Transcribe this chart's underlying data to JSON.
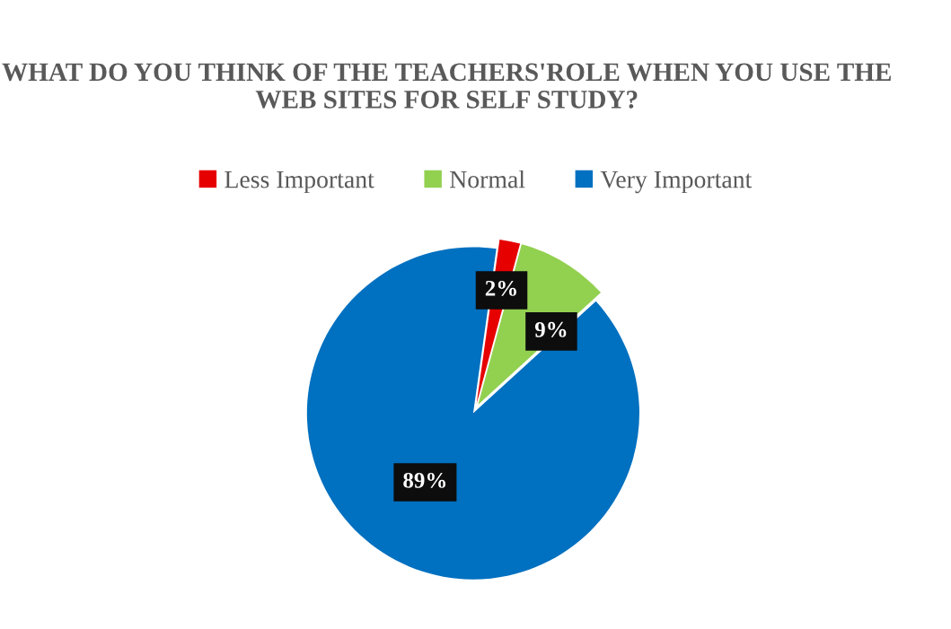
{
  "chart_data": {
    "type": "pie",
    "title": "WHAT DO YOU THINK OF THE TEACHERS'ROLE WHEN YOU USE THE WEB SITES FOR SELF STUDY?",
    "categories": [
      "Less Important",
      "Normal",
      "Very Important"
    ],
    "values": [
      2,
      9,
      89
    ],
    "colors": [
      "#e60000",
      "#92d050",
      "#0070c0"
    ],
    "value_labels": [
      "2%",
      "9%",
      "89%"
    ],
    "legend": "top"
  }
}
